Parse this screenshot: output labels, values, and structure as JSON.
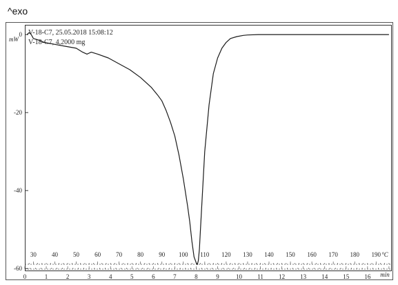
{
  "exo_label": "^exo",
  "chart_data": {
    "type": "line",
    "sample_lines": [
      "V-18-C7, 25.05.2018 15:08:12",
      "V-18-C7, 4,2000 mg"
    ],
    "y_unit": "mW",
    "y_ticks": [
      "0",
      "-20",
      "-40",
      "-60"
    ],
    "y_tick_values": [
      0,
      -20,
      -40,
      -60
    ],
    "ylim": [
      -60.5,
      2.5
    ],
    "temp_unit": "°C",
    "temp_ticks": [
      "30",
      "40",
      "50",
      "60",
      "70",
      "80",
      "90",
      "100",
      "110",
      "120",
      "130",
      "140",
      "150",
      "160",
      "170",
      "180",
      "190"
    ],
    "temp_tick_values": [
      30,
      40,
      50,
      60,
      70,
      80,
      90,
      100,
      110,
      120,
      130,
      140,
      150,
      160,
      170,
      180,
      190
    ],
    "temp_range": [
      26,
      197
    ],
    "time_unit": "min",
    "time_ticks": [
      "0",
      "1",
      "2",
      "3",
      "4",
      "5",
      "6",
      "7",
      "8",
      "9",
      "10",
      "11",
      "12",
      "13",
      "14",
      "15",
      "16"
    ],
    "time_tick_values": [
      0,
      1,
      2,
      3,
      4,
      5,
      6,
      7,
      8,
      9,
      10,
      11,
      12,
      13,
      14,
      15,
      16
    ],
    "time_range": [
      0,
      17.1
    ],
    "series": [
      {
        "color": "#1a1a1a",
        "x": [
          27,
          28,
          29,
          30,
          33,
          35,
          40,
          45,
          50,
          53,
          55,
          57,
          60,
          65,
          70,
          75,
          80,
          82,
          85,
          88,
          90,
          92,
          94,
          96,
          98,
          100,
          102,
          103,
          104,
          105,
          106,
          106.5,
          107,
          107.5,
          108,
          109,
          110,
          112,
          114,
          116,
          118,
          120,
          122,
          125,
          128,
          130,
          135,
          140,
          150,
          160,
          170,
          180,
          190,
          196
        ],
        "y": [
          0,
          0.5,
          0,
          -1,
          -1.5,
          -2,
          -2.5,
          -3,
          -3.5,
          -4.5,
          -5,
          -4.5,
          -5,
          -6,
          -7.5,
          -9,
          -11,
          -12,
          -13.5,
          -15.5,
          -17,
          -19.5,
          -22.5,
          -26,
          -31,
          -37,
          -44,
          -48,
          -53,
          -57,
          -58.5,
          -59,
          -58,
          -55,
          -50,
          -40,
          -30,
          -18,
          -10,
          -6,
          -3.5,
          -2,
          -1,
          -0.5,
          -0.2,
          -0.1,
          0,
          0,
          0,
          0,
          0,
          0,
          0,
          0
        ]
      }
    ]
  }
}
